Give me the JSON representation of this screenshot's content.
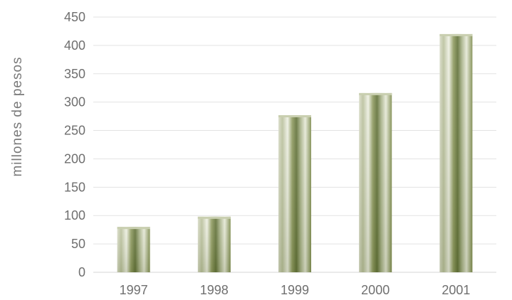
{
  "chart_data": {
    "type": "bar",
    "title": "",
    "xlabel": "",
    "ylabel": "millones de pesos",
    "categories": [
      "1997",
      "1998",
      "1999",
      "2000",
      "2001"
    ],
    "values": [
      80,
      98,
      277,
      316,
      420
    ],
    "ylim": [
      0,
      450
    ],
    "yticks": [
      0,
      50,
      100,
      150,
      200,
      250,
      300,
      350,
      400,
      450
    ],
    "grid": true,
    "legend": "none",
    "colors": {
      "bar_dark": "#5f6f36",
      "bar_mid": "#a8b28a",
      "bar_light": "#e9ecdc",
      "grid": "#e3e3e3",
      "text": "#6f6f6f"
    }
  }
}
